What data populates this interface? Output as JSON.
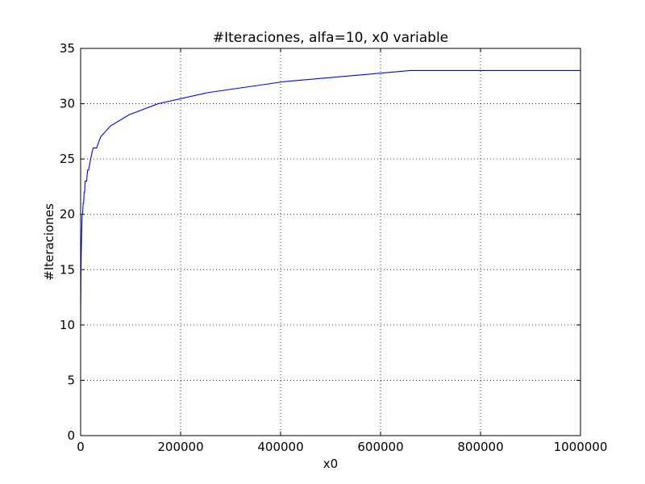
{
  "chart_data": {
    "type": "line",
    "title": "#Iteraciones, alfa=10, x0 variable",
    "xlabel": "x0",
    "ylabel": "#Iteraciones",
    "xlim": [
      0,
      1000000
    ],
    "ylim": [
      0,
      35
    ],
    "grid": true,
    "grid_style": "dotted",
    "xticks": [
      0,
      200000,
      400000,
      600000,
      800000,
      1000000
    ],
    "xtick_labels": [
      "0",
      "200000",
      "400000",
      "600000",
      "800000",
      "1000000"
    ],
    "yticks": [
      0,
      5,
      10,
      15,
      20,
      25,
      30,
      35
    ],
    "ytick_labels": [
      "0",
      "5",
      "10",
      "15",
      "20",
      "25",
      "30",
      "35"
    ],
    "series": [
      {
        "color": "#0000ff",
        "x": [
          0,
          500,
          1000,
          1500,
          2000,
          2500,
          3000,
          4000,
          5000,
          6000,
          7000,
          8000,
          9000,
          10000,
          12000,
          14000,
          16000,
          20000,
          25000,
          32000,
          40000,
          60000,
          97000,
          155000,
          254000,
          408000,
          660000,
          1000000
        ],
        "y": [
          10,
          14,
          16,
          17,
          18,
          19,
          20,
          20,
          21,
          21,
          22,
          22,
          23,
          23,
          23,
          24,
          24,
          25,
          26,
          26,
          27,
          28,
          29,
          30,
          31,
          32,
          33,
          33
        ]
      }
    ]
  }
}
